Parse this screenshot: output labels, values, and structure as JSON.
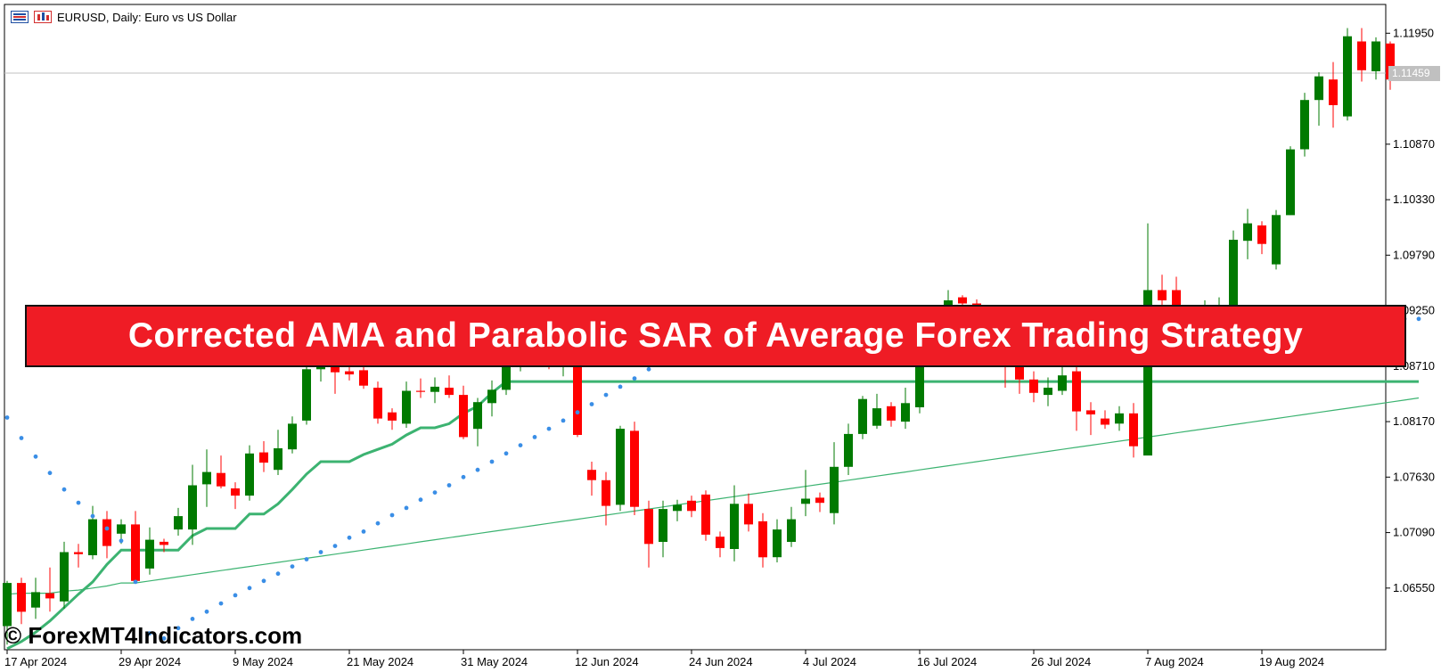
{
  "header": {
    "symbol_text": "EURUSD, Daily:  Euro vs US Dollar",
    "menu_icon": "menu-icon",
    "chart_icon": "chart-icon"
  },
  "banner": {
    "title": "Corrected AMA and Parabolic SAR of Average Forex Trading Strategy"
  },
  "watermark": {
    "text": "© ForexMT4Indicators.com"
  },
  "colors": {
    "bull": "#007a00",
    "bear": "#ff0000",
    "sar": "#3a8ee6",
    "ama_long": "#3cb371",
    "ama_short": "#ff4500",
    "banner": "#ef1c25"
  },
  "chart_data": {
    "type": "candlestick",
    "symbol": "EURUSD",
    "timeframe": "Daily",
    "title": "EURUSD, Daily:  Euro vs US Dollar",
    "ylim": [
      1.0595,
      1.1223
    ],
    "y_ticks": [
      "1.11950",
      "1.10870",
      "1.10330",
      "1.09790",
      "1.09250",
      "1.08710",
      "1.08170",
      "1.07630",
      "1.07090",
      "1.06550"
    ],
    "x_ticks": [
      {
        "label": "17 Apr 2024",
        "index": 0
      },
      {
        "label": "29 Apr 2024",
        "index": 8
      },
      {
        "label": "9 May 2024",
        "index": 16
      },
      {
        "label": "21 May 2024",
        "index": 24
      },
      {
        "label": "31 May 2024",
        "index": 32
      },
      {
        "label": "12 Jun 2024",
        "index": 40
      },
      {
        "label": "24 Jun 2024",
        "index": 48
      },
      {
        "label": "4 Jul 2024",
        "index": 56
      },
      {
        "label": "16 Jul 2024",
        "index": 64
      },
      {
        "label": "26 Jul 2024",
        "index": 72
      },
      {
        "label": "7 Aug 2024",
        "index": 80
      },
      {
        "label": "19 Aug 2024",
        "index": 88
      }
    ],
    "current_price": "1.11459",
    "candles": [
      [
        1.0618,
        1.066,
        1.06,
        1.0662
      ],
      [
        1.066,
        1.0632,
        1.062,
        1.0665
      ],
      [
        1.0636,
        1.0651,
        1.0625,
        1.0665
      ],
      [
        1.065,
        1.0645,
        1.0632,
        1.0675
      ],
      [
        1.0642,
        1.069,
        1.0635,
        1.07
      ],
      [
        1.069,
        1.0688,
        1.0675,
        1.0698
      ],
      [
        1.0687,
        1.0722,
        1.0683,
        1.0735
      ],
      [
        1.0722,
        1.0696,
        1.0684,
        1.073
      ],
      [
        1.0708,
        1.0717,
        1.0698,
        1.0722
      ],
      [
        1.0717,
        1.0662,
        1.066,
        1.073
      ],
      [
        1.0674,
        1.0702,
        1.0668,
        1.0714
      ],
      [
        1.07,
        1.0697,
        1.069,
        1.0703
      ],
      [
        1.0712,
        1.0725,
        1.0706,
        1.0733
      ],
      [
        1.0712,
        1.0755,
        1.0697,
        1.0775
      ],
      [
        1.0756,
        1.0768,
        1.0734,
        1.079
      ],
      [
        1.0767,
        1.0754,
        1.0752,
        1.0784
      ],
      [
        1.0752,
        1.0745,
        1.0732,
        1.0758
      ],
      [
        1.0745,
        1.0786,
        1.074,
        1.0794
      ],
      [
        1.0787,
        1.0777,
        1.0768,
        1.0798
      ],
      [
        1.077,
        1.0791,
        1.0765,
        1.0809
      ],
      [
        1.079,
        1.0815,
        1.0786,
        1.0822
      ],
      [
        1.0818,
        1.0868,
        1.0814,
        1.0874
      ],
      [
        1.0868,
        1.087,
        1.0856,
        1.088
      ],
      [
        1.0875,
        1.0865,
        1.0844,
        1.0885
      ],
      [
        1.0866,
        1.0863,
        1.0857,
        1.087
      ],
      [
        1.0867,
        1.0852,
        1.0849,
        1.0878
      ],
      [
        1.085,
        1.082,
        1.0815,
        1.0856
      ],
      [
        1.0826,
        1.0818,
        1.0809,
        1.083
      ],
      [
        1.0815,
        1.0847,
        1.0811,
        1.0856
      ],
      [
        1.0847,
        1.0846,
        1.084,
        1.0859
      ],
      [
        1.0846,
        1.0851,
        1.0835,
        1.086
      ],
      [
        1.085,
        1.0843,
        1.084,
        1.0862
      ],
      [
        1.0843,
        1.0802,
        1.08,
        1.0852
      ],
      [
        1.081,
        1.0836,
        1.0793,
        1.084
      ],
      [
        1.0835,
        1.0848,
        1.0822,
        1.0857
      ],
      [
        1.0848,
        1.087,
        1.0843,
        1.0876
      ],
      [
        1.0874,
        1.0878,
        1.0866,
        1.089
      ],
      [
        1.0878,
        1.0873,
        1.087,
        1.0886
      ],
      [
        1.0878,
        1.0871,
        1.0868,
        1.089
      ],
      [
        1.087,
        1.0883,
        1.0861,
        1.089
      ],
      [
        1.0886,
        1.0804,
        1.0802,
        1.089
      ],
      [
        1.077,
        1.076,
        1.0745,
        1.0778
      ],
      [
        1.076,
        1.0735,
        1.0716,
        1.0768
      ],
      [
        1.0736,
        1.081,
        1.073,
        1.0813
      ],
      [
        1.0808,
        1.0734,
        1.0726,
        1.0817
      ],
      [
        1.0732,
        1.0698,
        1.0675,
        1.074
      ],
      [
        1.07,
        1.0732,
        1.0685,
        1.074
      ],
      [
        1.073,
        1.0736,
        1.072,
        1.0741
      ],
      [
        1.074,
        1.073,
        1.0724,
        1.0745
      ],
      [
        1.0746,
        1.0707,
        1.0701,
        1.075
      ],
      [
        1.0705,
        1.0694,
        1.0685,
        1.071
      ],
      [
        1.0693,
        1.0737,
        1.0681,
        1.0755
      ],
      [
        1.0737,
        1.0717,
        1.071,
        1.0747
      ],
      [
        1.072,
        1.0685,
        1.0675,
        1.0728
      ],
      [
        1.0685,
        1.0712,
        1.068,
        1.0722
      ],
      [
        1.07,
        1.0722,
        1.0695,
        1.0734
      ],
      [
        1.0737,
        1.0742,
        1.0725,
        1.077
      ],
      [
        1.0743,
        1.0738,
        1.0729,
        1.0748
      ],
      [
        1.0728,
        1.0773,
        1.0717,
        1.0797
      ],
      [
        1.0773,
        1.0805,
        1.0765,
        1.0815
      ],
      [
        1.0805,
        1.0839,
        1.08,
        1.0842
      ],
      [
        1.0813,
        1.083,
        1.081,
        1.0844
      ],
      [
        1.0832,
        1.0818,
        1.0812,
        1.0836
      ],
      [
        1.0817,
        1.0835,
        1.081,
        1.085
      ],
      [
        1.0831,
        1.0885,
        1.0825,
        1.089
      ],
      [
        1.0884,
        1.0903,
        1.0874,
        1.0906
      ],
      [
        1.0905,
        1.0935,
        1.09,
        1.0945
      ],
      [
        1.0938,
        1.0932,
        1.0925,
        1.094
      ],
      [
        1.0932,
        1.092,
        1.0918,
        1.0936
      ],
      [
        1.092,
        1.0895,
        1.0885,
        1.0925
      ],
      [
        1.0882,
        1.087,
        1.085,
        1.0886
      ],
      [
        1.0875,
        1.0858,
        1.0844,
        1.088
      ],
      [
        1.0858,
        1.0845,
        1.0836,
        1.0866
      ],
      [
        1.0843,
        1.085,
        1.0832,
        1.086
      ],
      [
        1.0847,
        1.0862,
        1.0843,
        1.087
      ],
      [
        1.0866,
        1.0827,
        1.0808,
        1.0874
      ],
      [
        1.0828,
        1.0824,
        1.0804,
        1.0836
      ],
      [
        1.082,
        1.0814,
        1.081,
        1.0828
      ],
      [
        1.0815,
        1.0825,
        1.0808,
        1.0832
      ],
      [
        1.0825,
        1.0793,
        1.0782,
        1.0835
      ],
      [
        1.0784,
        1.0945,
        1.0785,
        1.101
      ],
      [
        1.0945,
        1.0935,
        1.091,
        1.096
      ],
      [
        1.0945,
        1.0923,
        1.091,
        1.0958
      ],
      [
        1.093,
        1.0918,
        1.091,
        1.093
      ],
      [
        1.0918,
        1.093,
        1.091,
        1.0935
      ],
      [
        1.0913,
        1.093,
        1.0908,
        1.0938
      ],
      [
        1.093,
        1.0994,
        1.0922,
        1.1003
      ],
      [
        1.0993,
        1.101,
        1.0975,
        1.1024
      ],
      [
        1.1008,
        1.099,
        1.098,
        1.1012
      ],
      [
        1.097,
        1.1018,
        1.0965,
        1.1023
      ],
      [
        1.1018,
        1.1082,
        1.1018,
        1.1085
      ],
      [
        1.1082,
        1.113,
        1.1075,
        1.1137
      ],
      [
        1.113,
        1.1153,
        1.1105,
        1.1157
      ],
      [
        1.115,
        1.1125,
        1.1103,
        1.1167
      ],
      [
        1.1114,
        1.1192,
        1.111,
        1.12
      ],
      [
        1.1187,
        1.1159,
        1.1148,
        1.12
      ],
      [
        1.1158,
        1.1187,
        1.115,
        1.1191
      ],
      [
        1.1185,
        1.115,
        1.114,
        1.1187
      ]
    ],
    "series": [
      {
        "style": "line",
        "color": "#3cb371",
        "values": [
          1.0596,
          1.0603,
          1.0612,
          1.0623,
          1.0636,
          1.0649,
          1.0661,
          1.0678,
          1.0692,
          1.0692,
          1.0692,
          1.0692,
          1.0692,
          1.0706,
          1.0713,
          1.0713,
          1.0713,
          1.0727,
          1.0727,
          1.0737,
          1.0751,
          1.0766,
          1.0778,
          1.0778,
          1.0778,
          1.0785,
          1.079,
          1.0795,
          1.0804,
          1.0811,
          1.0811,
          1.0815,
          1.0825,
          1.0832,
          1.0845,
          1.0856,
          1.0856,
          1.0856,
          1.0856,
          1.0856,
          1.0856,
          1.0856,
          1.0856,
          1.0856,
          1.0856,
          1.0856,
          1.0856,
          1.0856,
          1.0856,
          1.0856,
          1.0856,
          1.0856,
          1.0856,
          1.0856,
          1.0856,
          1.0856,
          1.0856,
          1.0856,
          1.0856,
          1.0856,
          1.0856,
          1.0856,
          1.0856,
          1.0856,
          1.0856,
          1.0856,
          1.0856,
          1.0856,
          1.0856,
          1.0856,
          1.0856,
          1.0856,
          1.0856,
          1.0856,
          1.0856,
          1.0856,
          1.0856,
          1.0856,
          1.0856,
          1.0856,
          1.0856,
          1.0856,
          1.0856,
          1.0856,
          1.0856,
          1.0856,
          1.0856,
          1.0856,
          1.0856,
          1.0856,
          1.0856,
          1.0856,
          1.0856,
          1.0856,
          1.0856,
          1.0856,
          1.0856,
          1.0856,
          1.0856,
          1.0856
        ]
      },
      {
        "style": "line",
        "color": "#3cb371",
        "values": [
          1.0649,
          1.065,
          1.065,
          1.065,
          1.0652,
          1.0653,
          1.0655,
          1.0657,
          1.066,
          1.066,
          1.0662,
          1.0664,
          1.0666,
          1.0668,
          1.067,
          1.0672,
          1.0674,
          1.0676,
          1.0678,
          1.068,
          1.0682,
          1.0684,
          1.0686,
          1.0688,
          1.069,
          1.0692,
          1.0694,
          1.0696,
          1.0698,
          1.07,
          1.0702,
          1.0704,
          1.0706,
          1.0708,
          1.071,
          1.0712,
          1.0714,
          1.0716,
          1.0718,
          1.072,
          1.0722,
          1.0724,
          1.0726,
          1.0728,
          1.073,
          1.0732,
          1.0734,
          1.0736,
          1.0738,
          1.074,
          1.0742,
          1.0744,
          1.0746,
          1.0748,
          1.075,
          1.0752,
          1.0754,
          1.0756,
          1.0758,
          1.076,
          1.0762,
          1.0764,
          1.0766,
          1.0768,
          1.077,
          1.0772,
          1.0774,
          1.0776,
          1.0778,
          1.078,
          1.0782,
          1.0784,
          1.0786,
          1.0788,
          1.079,
          1.0792,
          1.0794,
          1.0796,
          1.0798,
          1.08,
          1.0802,
          1.0804,
          1.0806,
          1.0808,
          1.081,
          1.0812,
          1.0814,
          1.0816,
          1.0818,
          1.082,
          1.0822,
          1.0824,
          1.0826,
          1.0828,
          1.083,
          1.0832,
          1.0834,
          1.0836,
          1.0838,
          1.084
        ]
      },
      {
        "style": "dots",
        "color": "#3a8ee6",
        "values": [
          1.0821,
          1.0801,
          1.0783,
          1.0767,
          1.0751,
          1.0738,
          1.0725,
          1.0713,
          1.0701,
          1.0661,
          1.0611,
          1.0606,
          1.0616,
          1.0625,
          1.0632,
          1.064,
          1.0648,
          1.0655,
          1.0662,
          1.0669,
          1.0676,
          1.0683,
          1.069,
          1.0696,
          1.0704,
          1.071,
          1.0718,
          1.0726,
          1.0733,
          1.0741,
          1.0748,
          1.0755,
          1.0763,
          1.077,
          1.0778,
          1.0786,
          1.0794,
          1.0802,
          1.081,
          1.0818,
          1.0826,
          1.0834,
          1.0843,
          1.0851,
          1.0859,
          1.0868,
          1.0875,
          1.0883,
          1.089,
          1.0896,
          1.0901,
          1.0905,
          1.0908,
          1.0911,
          1.0913,
          1.0914,
          1.0915,
          1.0916,
          1.0917,
          1.0917,
          1.0917,
          1.0917,
          1.0917,
          1.0917,
          1.0917,
          1.0917,
          1.0917,
          1.0917,
          1.0917,
          1.0917,
          1.0917,
          1.0917,
          1.0917,
          1.0917,
          1.0917,
          1.0917,
          1.0917,
          1.0917,
          1.0917,
          1.0917,
          1.0917,
          1.0917,
          1.0917,
          1.0917,
          1.0917,
          1.0917,
          1.0917,
          1.0917,
          1.0917,
          1.0917,
          1.0917,
          1.0917,
          1.0917,
          1.0917,
          1.0917,
          1.0917,
          1.0917,
          1.0917,
          1.0917,
          1.0917
        ]
      }
    ]
  }
}
